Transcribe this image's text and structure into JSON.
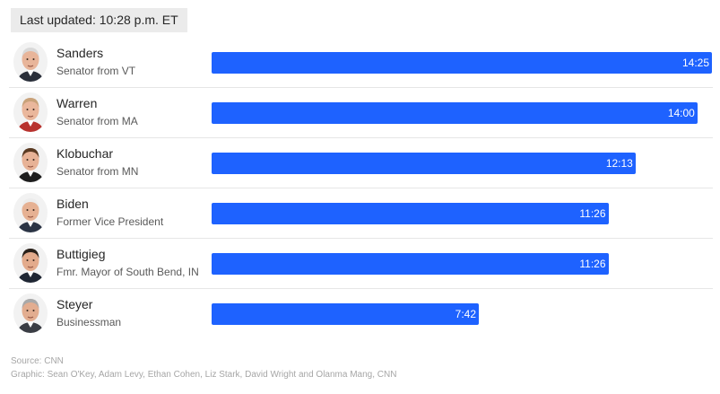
{
  "updated_label": "Last updated: 10:28 p.m. ET",
  "chart_data": {
    "type": "bar",
    "orientation": "horizontal",
    "unit": "minutes:seconds",
    "xlim": [
      0,
      865
    ],
    "categories": [
      "Sanders",
      "Warren",
      "Klobuchar",
      "Biden",
      "Buttigieg",
      "Steyer"
    ],
    "subtitles": [
      "Senator from VT",
      "Senator from MA",
      "Senator from MN",
      "Former Vice President",
      "Fmr. Mayor of South Bend, IN",
      "Businessman"
    ],
    "labels": [
      "14:25",
      "14:00",
      "12:13",
      "11:26",
      "11:26",
      "7:42"
    ],
    "values": [
      865,
      840,
      733,
      686,
      686,
      462
    ],
    "avatars": [
      "sanders-avatar",
      "warren-avatar",
      "klobuchar-avatar",
      "biden-avatar",
      "buttigieg-avatar",
      "steyer-avatar"
    ],
    "bar_color": "#1e62ff",
    "grid": false
  },
  "avatar_styles": [
    {
      "hair": "#d9d9d9",
      "skin": "#e8b59a",
      "suit": "#2a2f3a"
    },
    {
      "hair": "#c9a27a",
      "skin": "#eab79c",
      "suit": "#b8322e"
    },
    {
      "hair": "#5a3a22",
      "skin": "#e7b296",
      "suit": "#1d1d1d"
    },
    {
      "hair": "#ececec",
      "skin": "#e6b193",
      "suit": "#2b3445"
    },
    {
      "hair": "#2a211a",
      "skin": "#e3ab8c",
      "suit": "#1f2633"
    },
    {
      "hair": "#a9a9a9",
      "skin": "#e2ad90",
      "suit": "#3a3d44"
    }
  ],
  "footer": {
    "source": "Source: CNN",
    "credits": "Graphic: Sean O'Key, Adam Levy, Ethan Cohen, Liz Stark, David Wright and Olanma Mang, CNN"
  }
}
